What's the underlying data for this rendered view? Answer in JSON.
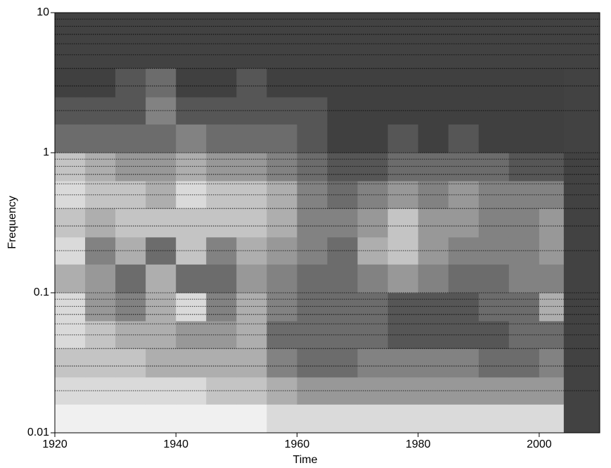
{
  "chart_data": {
    "type": "heatmap",
    "x_label": "Time",
    "y_label": "Frequency",
    "xlim": [
      1920,
      2010
    ],
    "xticks": [
      1920,
      1940,
      1960,
      1980,
      2000
    ],
    "ylim": [
      0.01,
      10
    ],
    "yticks": [
      0.01,
      0.1,
      1,
      10
    ],
    "y_scale": "log",
    "grid": true,
    "background": "#424242",
    "color_min": "#404040",
    "color_max": "#f0f0f0",
    "z_max": 8,
    "x_edges": [
      1920,
      1925,
      1930,
      1935,
      1940,
      1945,
      1950,
      1955,
      1960,
      1965,
      1970,
      1975,
      1980,
      1985,
      1990,
      1995,
      2000,
      2004
    ],
    "y_edges": [
      0.01,
      0.016,
      0.025,
      0.04,
      0.063,
      0.1,
      0.16,
      0.25,
      0.4,
      0.63,
      1,
      1.6,
      2.5,
      4
    ],
    "z": [
      [
        8,
        8,
        8,
        8,
        8,
        8,
        8,
        7,
        7,
        7,
        7,
        7,
        7,
        7,
        7,
        7,
        7
      ],
      [
        7,
        7,
        7,
        7,
        7,
        6,
        6,
        5,
        4,
        4,
        4,
        4,
        4,
        4,
        4,
        4,
        4
      ],
      [
        6,
        6,
        6,
        5,
        5,
        5,
        5,
        3,
        2,
        2,
        3,
        3,
        3,
        3,
        2,
        2,
        3
      ],
      [
        7,
        6,
        5,
        5,
        4,
        4,
        5,
        2,
        2,
        2,
        2,
        1,
        1,
        1,
        1,
        2,
        2
      ],
      [
        7,
        4,
        3,
        5,
        7,
        3,
        5,
        3,
        2,
        2,
        2,
        1,
        1,
        1,
        2,
        2,
        5
      ],
      [
        5,
        4,
        2,
        5,
        2,
        2,
        4,
        3,
        2,
        2,
        3,
        4,
        3,
        2,
        2,
        3,
        3
      ],
      [
        7,
        3,
        5,
        2,
        6,
        3,
        5,
        4,
        3,
        2,
        5,
        6,
        4,
        3,
        3,
        3,
        4
      ],
      [
        6,
        5,
        6,
        6,
        6,
        6,
        6,
        5,
        3,
        3,
        4,
        6,
        4,
        4,
        3,
        3,
        4
      ],
      [
        7,
        6,
        6,
        5,
        7,
        6,
        6,
        5,
        3,
        2,
        3,
        4,
        3,
        4,
        3,
        3,
        3
      ],
      [
        6,
        5,
        4,
        4,
        5,
        4,
        4,
        3,
        2,
        1,
        1,
        2,
        2,
        2,
        2,
        1,
        1
      ],
      [
        2,
        2,
        2,
        2,
        3,
        2,
        2,
        2,
        1,
        0,
        0,
        1,
        0,
        1,
        0,
        0,
        0
      ],
      [
        1,
        1,
        1,
        3,
        1,
        1,
        1,
        1,
        1,
        0,
        0,
        0,
        0,
        0,
        0,
        0,
        0
      ],
      [
        0,
        0,
        1,
        2,
        0,
        0,
        1,
        0,
        0,
        0,
        0,
        0,
        0,
        0,
        0,
        0,
        0
      ]
    ]
  }
}
